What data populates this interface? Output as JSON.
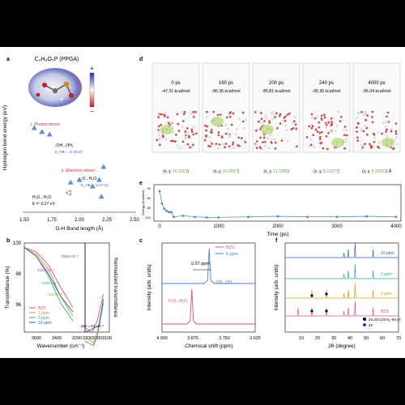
{
  "panel_a": {
    "label": "a",
    "molecule": "C₃H₈O₅P (PPGA)",
    "scale_plus": "+",
    "scale_minus": "−",
    "ylabel": "Hydrogen bond energy (eV)",
    "xlabel": "O-H Bond length (Å)",
    "xticks": [
      "1.50",
      "1.75",
      "2.00",
      "2.25",
      "2.50"
    ],
    "proton_donor": "i. Proton donor",
    "electron_donor": "ii. Electron donor",
    "bond1_line1": "-OH...OH₂",
    "bond1_line2": "E_HB = -0.76 eV",
    "bond2_line1": "-O...H₂O",
    "bond2_line2": "E_HB = -0.27 eV",
    "water_pair": "H₂O...H₂O",
    "water_energy": "E = -0.27 eV"
  },
  "panel_b": {
    "label": "b",
    "ylabel": "Transmittance (%)",
    "xlabel": "Wavenumber (cm⁻¹)",
    "yticks": [
      "96",
      "98",
      "100"
    ],
    "xticks_left": [
      "3600",
      "3400",
      "3200"
    ],
    "xticks_right": [
      "3300",
      "3200",
      "3100"
    ],
    "peak_ann": [
      "3182 cm⁻¹",
      "3243 cm⁻¹",
      "3230 cm⁻¹",
      "3229 cm⁻¹"
    ],
    "delta": "ΔW = 61 cm⁻¹",
    "right_ylabel": "Normalized transmittance",
    "legend": [
      "BZS",
      "1 ppm",
      "5 ppm",
      "10 ppm"
    ],
    "colors": [
      "#e0507a",
      "#c9a21a",
      "#3aa6a0",
      "#2c64b8"
    ]
  },
  "panel_c": {
    "label": "c",
    "ylabel": "Intensity (arb. units)",
    "xlabel": "Chemical shift (ppm)",
    "xticks": [
      "4.000",
      "3.875",
      "3.750",
      "3.625"
    ],
    "shift": "0.07 ppm",
    "peak_bzs": "H₂O...H₂O",
    "peak_ppm": "-OH...OH₂",
    "legend": [
      "BZS",
      "5 ppm"
    ],
    "colors": [
      "#e0507a",
      "#4a7fd0"
    ]
  },
  "panel_d": {
    "label": "d",
    "frames": [
      {
        "time": "0 ps",
        "energy": "-47.31 kcal/mol",
        "coord_prefix": "(x, y, ",
        "coord_value": "16.2263",
        "coord_suffix": ")"
      },
      {
        "time": "160 ps",
        "energy": "-86.36 kcal/mol",
        "coord_prefix": "(x, y, ",
        "coord_value": "16.8097",
        "coord_suffix": ")"
      },
      {
        "time": "200 ps",
        "energy": "-85.81 kcal/mol",
        "coord_prefix": "(x, y, ",
        "coord_value": "11.3285",
        "coord_suffix": ")"
      },
      {
        "time": "240 ps",
        "energy": "-95.30 kcal/mol",
        "coord_prefix": "(x, y, ",
        "coord_value": "8.31377",
        "coord_suffix": ")"
      },
      {
        "time": "4000 ps",
        "energy": "-95.04 kcal/mol",
        "coord_prefix": "(x, y, ",
        "coord_value": "8.31553",
        "coord_suffix": ") Å"
      }
    ]
  },
  "panel_e": {
    "label": "e",
    "ylabel": "Energy (kcal/mol)",
    "xlabel": "Time (ps)",
    "xticks": [
      "0",
      "1000",
      "2000",
      "3000",
      "4000"
    ],
    "yticks": [
      "-40",
      "-60",
      "-80",
      "-100"
    ]
  },
  "panel_f": {
    "label": "f",
    "ylabel": "Intensity (arb. units)",
    "xlabel": "2θ (degree)",
    "xticks": [
      "10",
      "20",
      "30",
      "40",
      "50",
      "60",
      "70"
    ],
    "traces": [
      "10 ppm",
      "5 ppm",
      "1 ppm",
      "BZS"
    ],
    "colors": [
      "#2c64b8",
      "#3aa6a0",
      "#c9a21a",
      "#e0507a"
    ],
    "legend_bottom": [
      "Zn₄SO₄(OH)₆·5H₂O",
      "Zn"
    ]
  },
  "chart_data": [
    {
      "type": "scatter",
      "panel": "a",
      "xlabel": "O-H Bond length (Å)",
      "ylabel": "Hydrogen bond energy (eV)",
      "xlim": [
        1.5,
        2.5
      ],
      "series": [
        {
          "name": "i. Proton donor",
          "points": [
            [
              1.59,
              -0.6
            ],
            [
              1.66,
              -0.63
            ],
            [
              1.73,
              -0.65
            ]
          ]
        },
        {
          "name": "ii. Electron donor",
          "points": [
            [
              1.92,
              -1.02
            ],
            [
              2.0,
              -1.0
            ],
            [
              2.18,
              -1.0
            ],
            [
              2.22,
              -0.9
            ],
            [
              2.2,
              -1.13
            ],
            [
              2.12,
              -1.05
            ]
          ]
        },
        {
          "name": "H₂O...H₂O",
          "points": [
            [
              1.9,
              -1.1
            ]
          ]
        }
      ]
    },
    {
      "type": "line",
      "panel": "b",
      "xlabel": "Wavenumber (cm⁻¹)",
      "ylabel": "Transmittance (%)",
      "series": [
        {
          "name": "BZS",
          "x": [
            3700,
            3600,
            3500,
            3400,
            3300,
            3243,
            3200,
            3150
          ],
          "values": [
            99.8,
            99.6,
            99.0,
            98.0,
            97.1,
            96.9,
            97.4,
            98.6
          ]
        },
        {
          "name": "1 ppm",
          "x": [
            3700,
            3600,
            3500,
            3400,
            3300,
            3229,
            3200,
            3150
          ],
          "values": [
            99.8,
            99.5,
            98.8,
            97.6,
            96.7,
            96.4,
            96.9,
            98.3
          ]
        },
        {
          "name": "5 ppm",
          "x": [
            3700,
            3600,
            3500,
            3400,
            3300,
            3230,
            3200,
            3150
          ],
          "values": [
            99.8,
            99.4,
            98.5,
            97.3,
            96.5,
            96.3,
            96.7,
            98.2
          ]
        },
        {
          "name": "10 ppm",
          "x": [
            3700,
            3600,
            3500,
            3400,
            3300,
            3182,
            3150
          ],
          "values": [
            99.8,
            99.4,
            98.6,
            97.6,
            96.9,
            97.2,
            98.4
          ]
        }
      ]
    },
    {
      "type": "line",
      "panel": "c",
      "xlabel": "Chemical shift (ppm)",
      "ylabel": "Intensity (arb. units)",
      "xlim": [
        4.0,
        3.625
      ],
      "series": [
        {
          "name": "BZS",
          "peak_ppm": 3.88
        },
        {
          "name": "5 ppm",
          "peak_ppm": 3.81
        }
      ]
    },
    {
      "type": "line",
      "panel": "e",
      "xlabel": "Time (ps)",
      "ylabel": "Energy (kcal/mol)",
      "xlim": [
        0,
        4000
      ],
      "series": [
        {
          "name": "energy",
          "x": [
            0,
            40,
            80,
            120,
            160,
            200,
            240,
            400,
            600,
            800,
            1000,
            1500,
            2000,
            2500,
            3000,
            3500,
            4000
          ],
          "values": [
            -47,
            -70,
            -80,
            -84,
            -86,
            -86,
            -95,
            -93,
            -95,
            -96,
            -96,
            -95,
            -94,
            -95,
            -95,
            -94,
            -95
          ]
        }
      ]
    },
    {
      "type": "line",
      "panel": "f",
      "xlabel": "2θ (degree)",
      "ylabel": "Intensity (arb. units)",
      "xlim": [
        0,
        70
      ],
      "series": [
        {
          "name": "10 ppm",
          "peaks": [
            36.3,
            39.0,
            43.2,
            54.3
          ]
        },
        {
          "name": "5 ppm",
          "peaks": [
            36.3,
            39.0,
            43.2,
            54.3
          ]
        },
        {
          "name": "1 ppm",
          "peaks": [
            16.5,
            25.5,
            36.3,
            39.0,
            43.2,
            54.3
          ]
        },
        {
          "name": "BZS",
          "peaks": [
            8.0,
            16.5,
            25.5,
            36.3,
            39.0,
            43.2,
            54.3
          ]
        }
      ]
    }
  ]
}
